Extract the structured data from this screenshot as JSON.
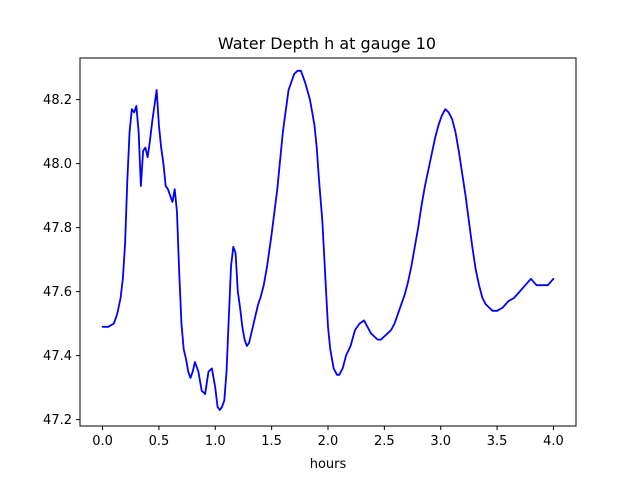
{
  "chart_data": {
    "type": "line",
    "title": "Water Depth h at gauge 10",
    "xlabel": "hours",
    "ylabel": "",
    "xlim": [
      -0.2,
      4.2
    ],
    "ylim": [
      47.18,
      48.33
    ],
    "grid": false,
    "legend": "none",
    "x_ticks": [
      0.0,
      0.5,
      1.0,
      1.5,
      2.0,
      2.5,
      3.0,
      3.5,
      4.0
    ],
    "x_tick_labels": [
      "0.0",
      "0.5",
      "1.0",
      "1.5",
      "2.0",
      "2.5",
      "3.0",
      "3.5",
      "4.0"
    ],
    "y_ticks": [
      47.2,
      47.4,
      47.6,
      47.8,
      48.0,
      48.2
    ],
    "y_tick_labels": [
      "47.2",
      "47.4",
      "47.6",
      "47.8",
      "48.0",
      "48.2"
    ],
    "series": [
      {
        "color": "#0000ff",
        "x": [
          0.0,
          0.05,
          0.1,
          0.13,
          0.16,
          0.18,
          0.2,
          0.22,
          0.24,
          0.26,
          0.28,
          0.3,
          0.32,
          0.34,
          0.36,
          0.38,
          0.4,
          0.42,
          0.44,
          0.46,
          0.48,
          0.5,
          0.52,
          0.54,
          0.56,
          0.58,
          0.6,
          0.62,
          0.64,
          0.66,
          0.68,
          0.7,
          0.72,
          0.74,
          0.76,
          0.78,
          0.8,
          0.82,
          0.85,
          0.88,
          0.91,
          0.94,
          0.97,
          1.0,
          1.02,
          1.04,
          1.06,
          1.08,
          1.1,
          1.12,
          1.14,
          1.16,
          1.18,
          1.2,
          1.22,
          1.24,
          1.26,
          1.28,
          1.3,
          1.32,
          1.34,
          1.36,
          1.38,
          1.4,
          1.43,
          1.46,
          1.5,
          1.55,
          1.6,
          1.65,
          1.7,
          1.73,
          1.76,
          1.8,
          1.84,
          1.86,
          1.88,
          1.9,
          1.92,
          1.95,
          1.98,
          2.0,
          2.02,
          2.05,
          2.08,
          2.1,
          2.13,
          2.16,
          2.2,
          2.24,
          2.28,
          2.32,
          2.35,
          2.38,
          2.41,
          2.44,
          2.47,
          2.5,
          2.53,
          2.56,
          2.59,
          2.62,
          2.65,
          2.68,
          2.71,
          2.74,
          2.77,
          2.8,
          2.83,
          2.86,
          2.89,
          2.92,
          2.95,
          2.98,
          3.01,
          3.04,
          3.07,
          3.1,
          3.13,
          3.16,
          3.19,
          3.22,
          3.25,
          3.28,
          3.31,
          3.34,
          3.37,
          3.4,
          3.43,
          3.46,
          3.5,
          3.55,
          3.6,
          3.65,
          3.7,
          3.75,
          3.8,
          3.85,
          3.9,
          3.95,
          4.0
        ],
        "y": [
          47.49,
          47.49,
          47.5,
          47.53,
          47.58,
          47.64,
          47.75,
          47.95,
          48.1,
          48.17,
          48.16,
          48.18,
          48.1,
          47.93,
          48.04,
          48.05,
          48.02,
          48.07,
          48.13,
          48.18,
          48.23,
          48.12,
          48.05,
          48.0,
          47.93,
          47.92,
          47.9,
          47.88,
          47.92,
          47.85,
          47.66,
          47.5,
          47.42,
          47.39,
          47.35,
          47.33,
          47.35,
          47.38,
          47.35,
          47.29,
          47.28,
          47.35,
          47.36,
          47.3,
          47.24,
          47.23,
          47.24,
          47.26,
          47.35,
          47.52,
          47.68,
          47.74,
          47.72,
          47.6,
          47.55,
          47.49,
          47.45,
          47.43,
          47.44,
          47.47,
          47.5,
          47.53,
          47.56,
          47.58,
          47.62,
          47.68,
          47.78,
          47.92,
          48.1,
          48.23,
          48.28,
          48.29,
          48.29,
          48.25,
          48.2,
          48.16,
          48.12,
          48.05,
          47.95,
          47.82,
          47.62,
          47.49,
          47.42,
          47.36,
          47.34,
          47.34,
          47.36,
          47.4,
          47.43,
          47.48,
          47.5,
          47.51,
          47.49,
          47.47,
          47.46,
          47.45,
          47.45,
          47.46,
          47.47,
          47.48,
          47.5,
          47.53,
          47.56,
          47.59,
          47.63,
          47.68,
          47.74,
          47.8,
          47.87,
          47.93,
          47.98,
          48.03,
          48.08,
          48.12,
          48.15,
          48.17,
          48.16,
          48.14,
          48.1,
          48.04,
          47.97,
          47.9,
          47.82,
          47.74,
          47.67,
          47.62,
          47.58,
          47.56,
          47.55,
          47.54,
          47.54,
          47.55,
          47.57,
          47.58,
          47.6,
          47.62,
          47.64,
          47.62,
          47.62,
          47.62,
          47.64
        ]
      }
    ]
  }
}
